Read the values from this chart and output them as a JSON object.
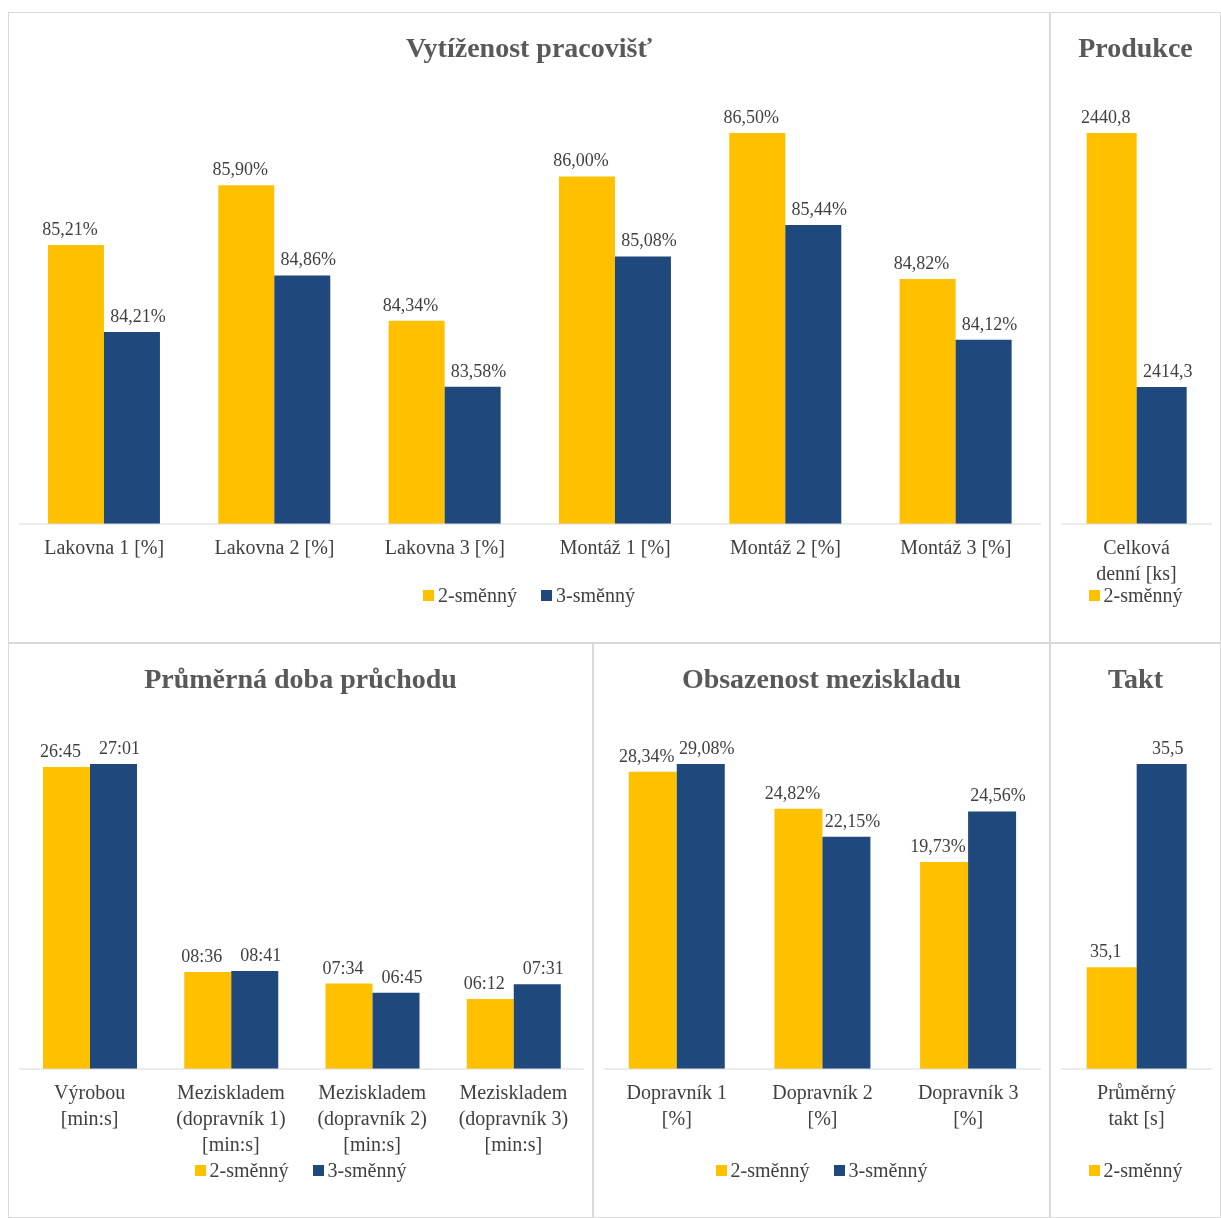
{
  "chart_data": [
    {
      "type": "bar",
      "title": "Vytíženost pracovišť",
      "categories": [
        "Lakovna 1 [%]",
        "Lakovna 2 [%]",
        "Lakovna 3 [%]",
        "Montáž 1 [%]",
        "Montáž 2 [%]",
        "Montáž 3 [%]"
      ],
      "series": [
        {
          "name": "2-směnný",
          "color": "#ffc000",
          "values": [
            85.21,
            85.9,
            84.34,
            86.0,
            86.5,
            84.82
          ],
          "value_labels": [
            "85,21%",
            "85,90%",
            "84,34%",
            "86,00%",
            "86,50%",
            "84,82%"
          ]
        },
        {
          "name": "3-směnný",
          "color": "#1f497d",
          "values": [
            84.21,
            84.86,
            83.58,
            85.08,
            85.44,
            84.12
          ],
          "value_labels": [
            "84,21%",
            "84,86%",
            "83,58%",
            "85,08%",
            "85,44%",
            "84,12%"
          ]
        }
      ],
      "ylim": [
        82,
        86.5
      ],
      "legend": "bottom"
    },
    {
      "type": "bar",
      "title": "Produkce",
      "categories": [
        "Celková denní [ks]"
      ],
      "series": [
        {
          "name": "2-směnný",
          "color": "#ffc000",
          "values": [
            2440.8
          ],
          "value_labels": [
            "2440,8"
          ]
        },
        {
          "color": "#1f497d",
          "values": [
            2414.3
          ],
          "value_labels": [
            "2414,3"
          ]
        }
      ],
      "ylim": [
        2400,
        2440.8
      ],
      "legend": "bottom"
    },
    {
      "type": "bar",
      "title": "Průměrná doba průchodu",
      "categories": [
        "Výrobou [min:s]",
        "Meziskladem (dopravník 1) [min:s]",
        "Meziskladem (dopravník 2) [min:s]",
        "Meziskladem (dopravník 3) [min:s]"
      ],
      "series": [
        {
          "name": "2-směnný",
          "color": "#ffc000",
          "values": [
            26.75,
            8.6,
            7.5667,
            6.2
          ],
          "value_labels": [
            "26:45",
            "08:36",
            "07:34",
            "06:12"
          ]
        },
        {
          "name": "3-směnný",
          "color": "#1f497d",
          "values": [
            27.0167,
            8.6833,
            6.75,
            7.5167
          ],
          "value_labels": [
            "27:01",
            "08:41",
            "06:45",
            "07:31"
          ]
        }
      ],
      "ylim": [
        0,
        27.0167
      ],
      "legend": "bottom"
    },
    {
      "type": "bar",
      "title": "Obsazenost meziskladu",
      "categories": [
        "Dopravník 1 [%]",
        "Dopravník 2 [%]",
        "Dopravník 3 [%]"
      ],
      "series": [
        {
          "name": "2-směnný",
          "color": "#ffc000",
          "values": [
            28.34,
            24.82,
            19.73
          ],
          "value_labels": [
            "28,34%",
            "24,82%",
            "19,73%"
          ]
        },
        {
          "name": "3-směnný",
          "color": "#1f497d",
          "values": [
            29.08,
            22.15,
            24.56
          ],
          "value_labels": [
            "29,08%",
            "22,15%",
            "24,56%"
          ]
        }
      ],
      "ylim": [
        0,
        29.08
      ],
      "legend": "bottom"
    },
    {
      "type": "bar",
      "title": "Takt",
      "categories": [
        "Průměrný takt [s]"
      ],
      "series": [
        {
          "name": "2-směnný",
          "color": "#ffc000",
          "values": [
            35.1
          ],
          "value_labels": [
            "35,1"
          ]
        },
        {
          "color": "#1f497d",
          "values": [
            35.5
          ],
          "value_labels": [
            "35,5"
          ]
        }
      ],
      "ylim": [
        34.9,
        35.5
      ],
      "legend": "bottom"
    }
  ]
}
